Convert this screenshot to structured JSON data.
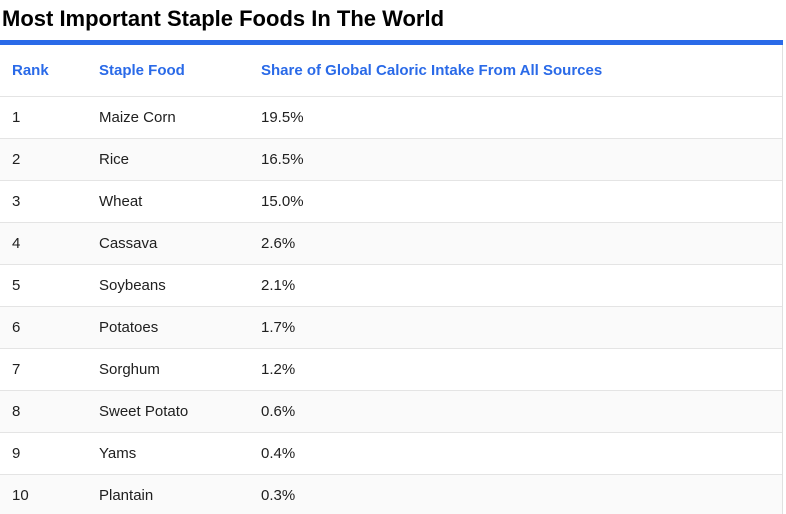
{
  "title": "Most Important Staple Foods In The World",
  "table": {
    "columns": [
      "Rank",
      "Staple Food",
      "Share of Global Caloric Intake From All Sources"
    ],
    "rows": [
      {
        "rank": "1",
        "food": "Maize Corn",
        "share": "19.5%"
      },
      {
        "rank": "2",
        "food": "Rice",
        "share": "16.5%"
      },
      {
        "rank": "3",
        "food": "Wheat",
        "share": "15.0%"
      },
      {
        "rank": "4",
        "food": "Cassava",
        "share": "2.6%"
      },
      {
        "rank": "5",
        "food": "Soybeans",
        "share": "2.1%"
      },
      {
        "rank": "6",
        "food": "Potatoes",
        "share": "1.7%"
      },
      {
        "rank": "7",
        "food": "Sorghum",
        "share": "1.2%"
      },
      {
        "rank": "8",
        "food": "Sweet Potato",
        "share": "0.6%"
      },
      {
        "rank": "9",
        "food": "Yams",
        "share": "0.4%"
      },
      {
        "rank": "10",
        "food": "Plantain",
        "share": "0.3%"
      }
    ]
  },
  "colors": {
    "accent_blue": "#2a6ae8",
    "title_text": "#000000",
    "body_text": "#202020",
    "separator": "#e4e4e4",
    "row_stripe": "#fafafa"
  },
  "chart_data": {
    "type": "table",
    "title": "Most Important Staple Foods In The World",
    "columns": [
      "Rank",
      "Staple Food",
      "Share of Global Caloric Intake From All Sources"
    ],
    "categories": [
      "Maize Corn",
      "Rice",
      "Wheat",
      "Cassava",
      "Soybeans",
      "Potatoes",
      "Sorghum",
      "Sweet Potato",
      "Yams",
      "Plantain"
    ],
    "values": [
      19.5,
      16.5,
      15.0,
      2.6,
      2.1,
      1.7,
      1.2,
      0.6,
      0.4,
      0.3
    ],
    "value_unit": "percent"
  }
}
